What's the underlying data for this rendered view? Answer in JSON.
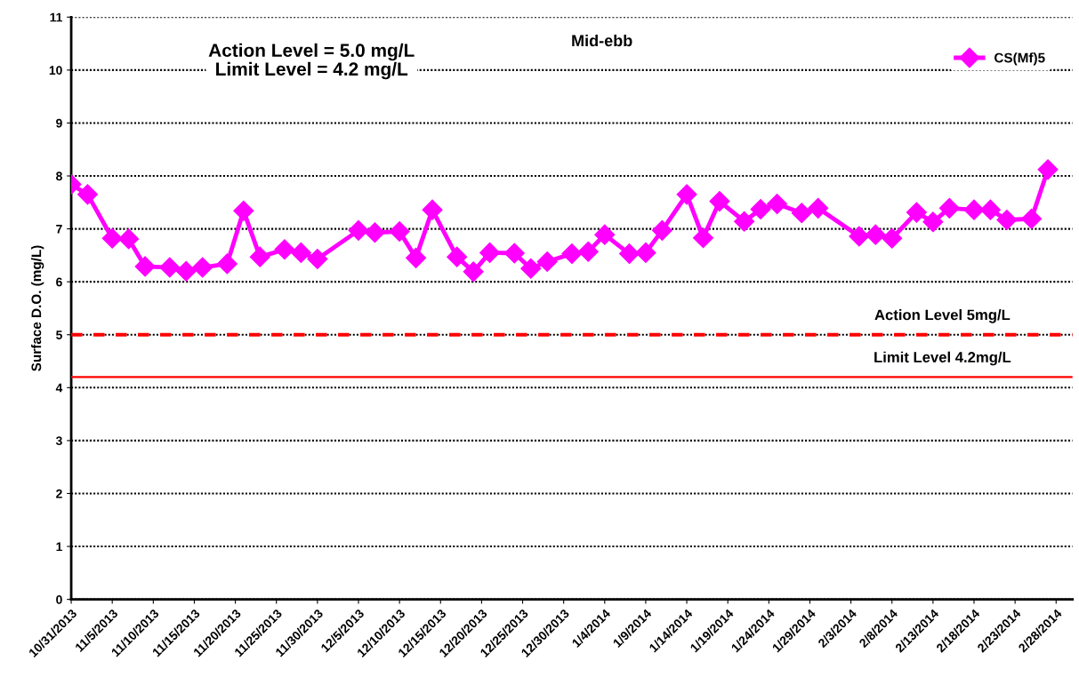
{
  "chart_data": {
    "type": "line",
    "ylabel": "Surface D.O. (mg/L)",
    "annotations": [
      "Action Level = 5.0 mg/L\nLimit Level = 4.2 mg/L",
      "Mid-ebb"
    ],
    "x": [
      "2013-10-31",
      "2013-11-02",
      "2013-11-05",
      "2013-11-07",
      "2013-11-09",
      "2013-11-12",
      "2013-11-14",
      "2013-11-16",
      "2013-11-19",
      "2013-11-21",
      "2013-11-23",
      "2013-11-26",
      "2013-11-28",
      "2013-11-30",
      "2013-12-05",
      "2013-12-07",
      "2013-12-10",
      "2013-12-12",
      "2013-12-14",
      "2013-12-17",
      "2013-12-19",
      "2013-12-21",
      "2013-12-24",
      "2013-12-26",
      "2013-12-28",
      "2013-12-31",
      "2014-01-02",
      "2014-01-04",
      "2014-01-07",
      "2014-01-09",
      "2014-01-11",
      "2014-01-14",
      "2014-01-16",
      "2014-01-18",
      "2014-01-21",
      "2014-01-23",
      "2014-01-25",
      "2014-01-28",
      "2014-01-30",
      "2014-02-04",
      "2014-02-06",
      "2014-02-08",
      "2014-02-11",
      "2014-02-13",
      "2014-02-15",
      "2014-02-18",
      "2014-02-20",
      "2014-02-22",
      "2014-02-25",
      "2014-02-27"
    ],
    "series": [
      {
        "name": "CS(Mf)5",
        "color": "#ff00ff",
        "values": [
          7.84,
          7.65,
          6.82,
          6.81,
          6.29,
          6.27,
          6.2,
          6.27,
          6.34,
          7.34,
          6.47,
          6.61,
          6.55,
          6.43,
          6.97,
          6.93,
          6.95,
          6.45,
          7.36,
          6.47,
          6.19,
          6.55,
          6.54,
          6.25,
          6.38,
          6.53,
          6.57,
          6.89,
          6.53,
          6.55,
          6.97,
          7.65,
          6.83,
          7.52,
          7.14,
          7.37,
          7.47,
          7.3,
          7.39,
          6.86,
          6.89,
          6.82,
          7.31,
          7.13,
          7.39,
          7.36,
          7.36,
          7.17,
          7.19,
          8.12
        ]
      }
    ],
    "marker": "diamond",
    "line_style": "solid",
    "grid": "y",
    "legend": "top right",
    "ylim": [
      0,
      11
    ],
    "yticks": [
      0,
      1,
      2,
      3,
      4,
      5,
      6,
      7,
      8,
      9,
      10,
      11
    ],
    "xlim": [
      "2013-10-31",
      "2014-03-02"
    ],
    "xticks": [
      {
        "value": "2013-10-31",
        "label": "10/31/2013"
      },
      {
        "value": "2013-11-05",
        "label": "11/5/2013"
      },
      {
        "value": "2013-11-10",
        "label": "11/10/2013"
      },
      {
        "value": "2013-11-15",
        "label": "11/15/2013"
      },
      {
        "value": "2013-11-20",
        "label": "11/20/2013"
      },
      {
        "value": "2013-11-25",
        "label": "11/25/2013"
      },
      {
        "value": "2013-11-30",
        "label": "11/30/2013"
      },
      {
        "value": "2013-12-05",
        "label": "12/5/2013"
      },
      {
        "value": "2013-12-10",
        "label": "12/10/2013"
      },
      {
        "value": "2013-12-15",
        "label": "12/15/2013"
      },
      {
        "value": "2013-12-20",
        "label": "12/20/2013"
      },
      {
        "value": "2013-12-25",
        "label": "12/25/2013"
      },
      {
        "value": "2013-12-30",
        "label": "12/30/2013"
      },
      {
        "value": "2014-01-04",
        "label": "1/4/2014"
      },
      {
        "value": "2014-01-09",
        "label": "1/9/2014"
      },
      {
        "value": "2014-01-14",
        "label": "1/14/2014"
      },
      {
        "value": "2014-01-19",
        "label": "1/19/2014"
      },
      {
        "value": "2014-01-24",
        "label": "1/24/2014"
      },
      {
        "value": "2014-01-29",
        "label": "1/29/2014"
      },
      {
        "value": "2014-02-03",
        "label": "2/3/2014"
      },
      {
        "value": "2014-02-08",
        "label": "2/8/2014"
      },
      {
        "value": "2014-02-13",
        "label": "2/13/2014"
      },
      {
        "value": "2014-02-18",
        "label": "2/18/2014"
      },
      {
        "value": "2014-02-23",
        "label": "2/23/2014"
      },
      {
        "value": "2014-02-28",
        "label": "2/28/2014"
      }
    ],
    "ref_lines": [
      {
        "axis": "y",
        "value": 5,
        "label": "Action Level 5mg/L",
        "color": "#ff0000",
        "line_style": "dashed"
      },
      {
        "axis": "y",
        "value": 4.2,
        "label": "Limit Level 4.2mg/L",
        "color": "#ff0000",
        "line_style": "solid"
      }
    ]
  }
}
